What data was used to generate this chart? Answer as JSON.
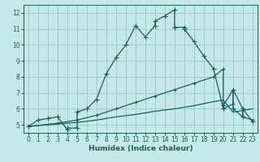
{
  "title": "",
  "xlabel": "Humidex (Indice chaleur)",
  "bg_color": "#c5e8e8",
  "grid_color": "#9fcece",
  "line_color": "#1a6060",
  "xlim": [
    -0.5,
    23.5
  ],
  "ylim": [
    4.5,
    12.5
  ],
  "xticks": [
    0,
    1,
    2,
    3,
    4,
    5,
    6,
    7,
    8,
    9,
    10,
    11,
    12,
    13,
    14,
    15,
    16,
    17,
    18,
    19,
    20,
    21,
    22,
    23
  ],
  "yticks": [
    5,
    6,
    7,
    8,
    9,
    10,
    11,
    12
  ],
  "line1_x": [
    0,
    1,
    2,
    3,
    4,
    4,
    5,
    5,
    6,
    7,
    8,
    9,
    10,
    11,
    12,
    13,
    13,
    14,
    15,
    15,
    16,
    16,
    17,
    18,
    19,
    20,
    20,
    21,
    21,
    22,
    22,
    23
  ],
  "line1_y": [
    4.9,
    5.3,
    5.4,
    5.5,
    4.7,
    4.8,
    4.8,
    5.8,
    6.0,
    6.6,
    8.2,
    9.2,
    10.0,
    11.2,
    10.5,
    11.2,
    11.5,
    11.8,
    12.2,
    11.1,
    11.1,
    11.0,
    10.2,
    9.3,
    8.5,
    6.0,
    6.2,
    7.2,
    6.0,
    5.5,
    6.0,
    5.2
  ],
  "line2_x": [
    0,
    3,
    5,
    7,
    9,
    11,
    13,
    15,
    17,
    19,
    20,
    21,
    22,
    23
  ],
  "line2_y": [
    4.9,
    5.05,
    5.15,
    5.3,
    5.5,
    5.65,
    5.85,
    6.0,
    6.2,
    6.45,
    6.55,
    5.8,
    5.9,
    6.0
  ],
  "line3_x": [
    0,
    3,
    5,
    7,
    9,
    11,
    13,
    15,
    17,
    19,
    20,
    20,
    21,
    21,
    22,
    22,
    23
  ],
  "line3_y": [
    4.9,
    5.1,
    5.3,
    5.6,
    6.0,
    6.4,
    6.8,
    7.2,
    7.6,
    8.0,
    8.5,
    6.0,
    6.3,
    7.2,
    6.0,
    5.5,
    5.3
  ],
  "marker_size": 2.5,
  "line_width": 0.9,
  "xlabel_size": 6.5,
  "tick_size": 5.5
}
